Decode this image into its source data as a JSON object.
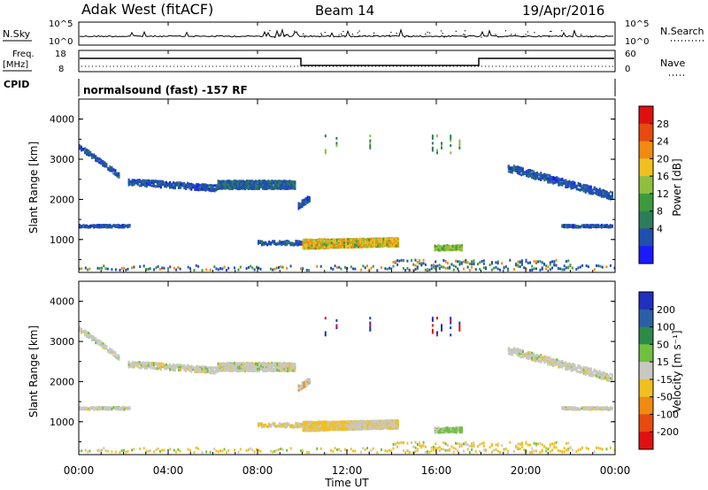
{
  "header": {
    "station": "Adak West (fitACF)",
    "beam": "Beam 14",
    "date": "19/Apr/2016"
  },
  "top_panels": {
    "nsky_label": "N.Sky",
    "nsearch_label": "N.Search",
    "nsky_ticks": [
      "10^5",
      "10^0"
    ],
    "freq_label_1": "Freq.",
    "freq_label_2": "[MHz]",
    "freq_ticks": [
      "18",
      "8"
    ],
    "nave_label": "Nave",
    "nave_ticks": [
      "60",
      "0"
    ],
    "cpid_label": "CPID",
    "cpid_text": "normalsound (fast) -157 RF"
  },
  "colors": {
    "power": [
      "#1a1aff",
      "#1f4fb0",
      "#2d7d5a",
      "#3d9a3d",
      "#8fbf3f",
      "#f0c020",
      "#f08a10",
      "#e84a10",
      "#e01010"
    ],
    "velocity": [
      "#2030c0",
      "#2a60a8",
      "#2e8a4a",
      "#70c040",
      "#c8c8c0",
      "#f0c020",
      "#f08a10",
      "#e84a10",
      "#e01010"
    ]
  },
  "chart_data": [
    {
      "type": "heatmap",
      "panel": "power",
      "ylabel": "Slant Range [km]",
      "ylim": [
        180,
        4500
      ],
      "yticks": [
        "1000",
        "2000",
        "3000",
        "4000"
      ],
      "colorbar_label": "Power [dB]",
      "colorbar_ticks": [
        "4",
        "8",
        "12",
        "16",
        "20",
        "24",
        "28"
      ],
      "xlim_hours": [
        0,
        24
      ]
    },
    {
      "type": "heatmap",
      "panel": "velocity",
      "ylabel": "Slant Range [km]",
      "ylim": [
        180,
        4500
      ],
      "yticks": [
        "1000",
        "2000",
        "3000",
        "4000"
      ],
      "colorbar_label": "Velocity [m s⁻¹]",
      "colorbar_ticks": [
        "200",
        "100",
        "50",
        "15",
        "-15",
        "-50",
        "-100",
        "-200"
      ],
      "xlim_hours": [
        0,
        24
      ]
    }
  ],
  "xaxis": {
    "label": "Time UT",
    "ticks": [
      "00:00",
      "04:00",
      "08:00",
      "12:00",
      "16:00",
      "20:00",
      "00:00"
    ]
  }
}
